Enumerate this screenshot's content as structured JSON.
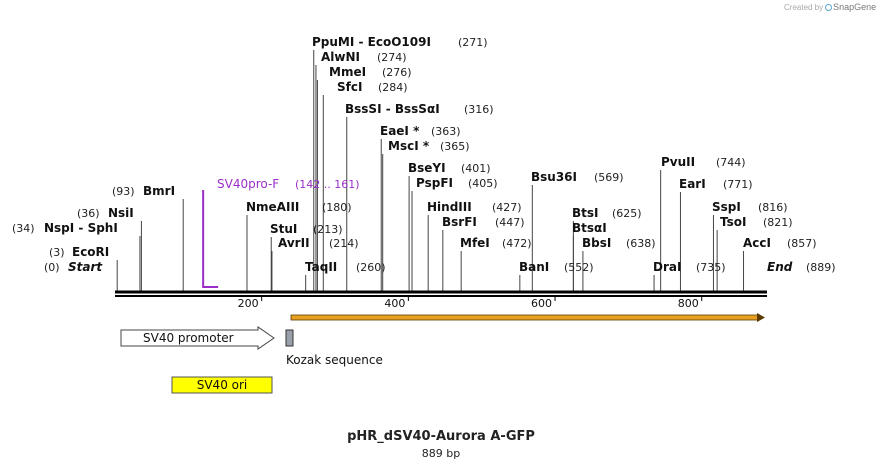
{
  "watermark": {
    "prefix": "Created by",
    "brand": "SnapGene"
  },
  "title": "pHR_dSV40-Aurora A-GFP",
  "length_label": "889 bp",
  "sequence_length": 889,
  "colors": {
    "backbone": "#000000",
    "primer": "#9b30c9",
    "promoter_fill": "#ffffff",
    "ori_fill": "#ffff00",
    "kozak_fill": "#9aa0ab",
    "gfp_arrow": "#e8a020",
    "gfp_border": "#333333"
  },
  "sites": [
    {
      "name": "Start",
      "pos": 0,
      "label": "(0)",
      "italic": true
    },
    {
      "name": "EcoRI",
      "pos": 3,
      "label": "(3)"
    },
    {
      "name": "NspI - SphI",
      "pos": 34,
      "label": "(34)"
    },
    {
      "name": "NsiI",
      "pos": 36,
      "label": "(36)"
    },
    {
      "name": "BmrI",
      "pos": 93,
      "label": "(93)"
    },
    {
      "name": "NmeAIII",
      "pos": 180,
      "label": "(180)"
    },
    {
      "name": "StuI",
      "pos": 213,
      "label": "(213)"
    },
    {
      "name": "AvrII",
      "pos": 214,
      "label": "(214)"
    },
    {
      "name": "TaqII",
      "pos": 260,
      "label": "(260)"
    },
    {
      "name": "PpuMI - EcoO109I",
      "pos": 271,
      "label": "(271)"
    },
    {
      "name": "AlwNI",
      "pos": 274,
      "label": "(274)"
    },
    {
      "name": "MmeI",
      "pos": 276,
      "label": "(276)"
    },
    {
      "name": "SfcI",
      "pos": 284,
      "label": "(284)"
    },
    {
      "name": "BssSI - BssSαI",
      "pos": 316,
      "label": "(316)"
    },
    {
      "name": "EaeI *",
      "pos": 363,
      "label": "(363)"
    },
    {
      "name": "MscI *",
      "pos": 365,
      "label": "(365)"
    },
    {
      "name": "BseYI",
      "pos": 401,
      "label": "(401)"
    },
    {
      "name": "PspFI",
      "pos": 405,
      "label": "(405)"
    },
    {
      "name": "HindIII",
      "pos": 427,
      "label": "(427)"
    },
    {
      "name": "BsrFI",
      "pos": 447,
      "label": "(447)"
    },
    {
      "name": "MfeI",
      "pos": 472,
      "label": "(472)"
    },
    {
      "name": "BanI",
      "pos": 552,
      "label": "(552)"
    },
    {
      "name": "Bsu36I",
      "pos": 569,
      "label": "(569)"
    },
    {
      "name": "BtsI",
      "pos": 625,
      "label": "(625)"
    },
    {
      "name": "BtsαI",
      "pos": 625,
      "label": ""
    },
    {
      "name": "BbsI",
      "pos": 638,
      "label": "(638)"
    },
    {
      "name": "DraI",
      "pos": 735,
      "label": "(735)"
    },
    {
      "name": "PvuII",
      "pos": 744,
      "label": "(744)"
    },
    {
      "name": "EarI",
      "pos": 771,
      "label": "(771)"
    },
    {
      "name": "SspI",
      "pos": 816,
      "label": "(816)"
    },
    {
      "name": "TsoI",
      "pos": 821,
      "label": "(821)"
    },
    {
      "name": "AccI",
      "pos": 857,
      "label": "(857)"
    },
    {
      "name": "End",
      "pos": 889,
      "label": "(889)",
      "italic": true
    }
  ],
  "primer": {
    "name": "SV40pro-F",
    "range_label": "(142 .. 161)",
    "start": 142,
    "end": 161
  },
  "ruler_ticks": [
    {
      "value": 200,
      "label": "200"
    },
    {
      "value": 400,
      "label": "400"
    },
    {
      "value": 600,
      "label": "600"
    },
    {
      "value": 800,
      "label": "800"
    }
  ],
  "features": {
    "promoter": {
      "label": "SV40 promoter",
      "start": 9,
      "end": 217
    },
    "ori": {
      "label": "SV40 ori",
      "start": 76,
      "end": 212
    },
    "kozak": {
      "label": "Kozak sequence",
      "start": 233,
      "end": 242
    },
    "gfp": {
      "label": "",
      "start": 237,
      "end": 889
    }
  }
}
